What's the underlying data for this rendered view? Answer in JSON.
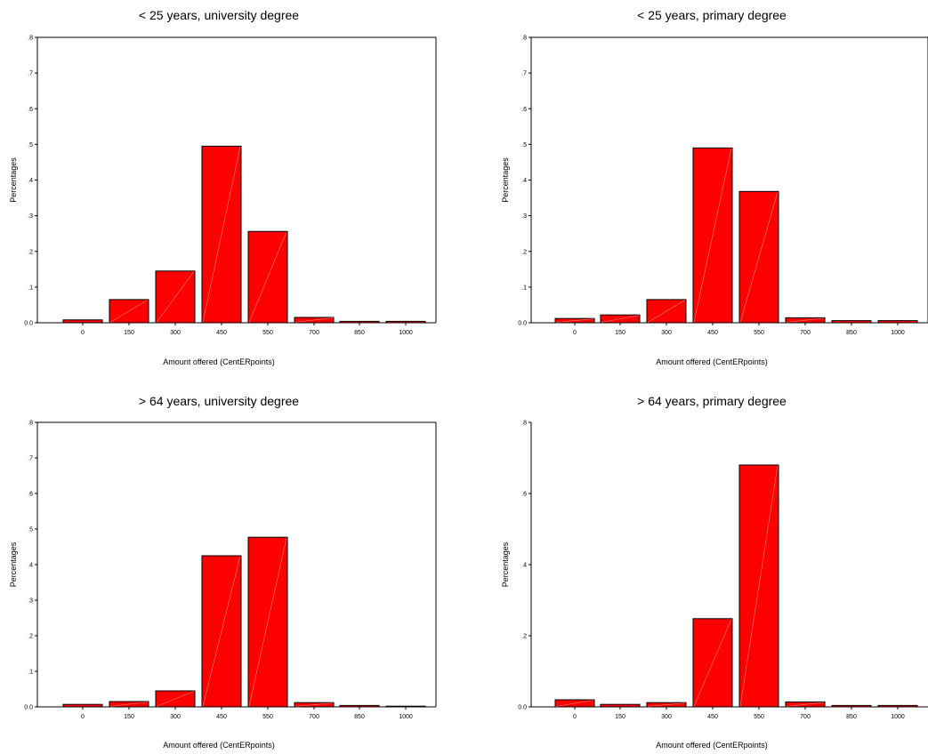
{
  "chart_data": [
    {
      "type": "bar",
      "title": "< 25 years, university degree",
      "xlabel": "Amount offered (CentERpoints)",
      "ylabel": "Percentages",
      "categories": [
        "0",
        "150",
        "300",
        "450",
        "550",
        "700",
        "850",
        "1000"
      ],
      "values": [
        0.008,
        0.065,
        0.145,
        0.495,
        0.256,
        0.015,
        0.004,
        0.004
      ],
      "ylim": [
        0,
        0.8
      ],
      "yticks": [
        0.0,
        0.1,
        0.2,
        0.3,
        0.4,
        0.5,
        0.6,
        0.7,
        0.8
      ],
      "ytick_labels": [
        "0.0",
        ".1",
        ".2",
        ".3",
        ".4",
        ".5",
        ".6",
        ".7",
        ".8"
      ],
      "grid": false,
      "bar_color": "#ff0000"
    },
    {
      "type": "bar",
      "title": "< 25 years, primary degree",
      "xlabel": "Amount offered (CentERpoints)",
      "ylabel": "Percentages",
      "categories": [
        "0",
        "150",
        "300",
        "450",
        "550",
        "700",
        "850",
        "1000"
      ],
      "values": [
        0.012,
        0.022,
        0.065,
        0.49,
        0.368,
        0.014,
        0.006,
        0.006
      ],
      "ylim": [
        0,
        0.8
      ],
      "yticks": [
        0.0,
        0.1,
        0.2,
        0.3,
        0.4,
        0.5,
        0.6,
        0.7,
        0.8
      ],
      "ytick_labels": [
        "0.0",
        ".1",
        ".2",
        ".3",
        ".4",
        ".5",
        ".6",
        ".7",
        ".8"
      ],
      "grid": false,
      "bar_color": "#ff0000"
    },
    {
      "type": "bar",
      "title": "> 64 years, university degree",
      "xlabel": "Amount offered (CentERpoints)",
      "ylabel": "Percentages",
      "categories": [
        "0",
        "150",
        "300",
        "450",
        "550",
        "700",
        "850",
        "1000"
      ],
      "values": [
        0.007,
        0.015,
        0.045,
        0.425,
        0.477,
        0.012,
        0.004,
        0.002
      ],
      "ylim": [
        0,
        0.8
      ],
      "yticks": [
        0.0,
        0.1,
        0.2,
        0.3,
        0.4,
        0.5,
        0.6,
        0.7,
        0.8
      ],
      "ytick_labels": [
        "0.0",
        ".1",
        ".2",
        ".3",
        ".4",
        ".5",
        ".6",
        ".7",
        ".8"
      ],
      "grid": false,
      "bar_color": "#ff0000"
    },
    {
      "type": "bar",
      "title": "> 64 years, primary degree",
      "xlabel": "Amount offered (CentERpoints)",
      "ylabel": "Percentages",
      "categories": [
        "0",
        "150",
        "300",
        "450",
        "550",
        "700",
        "850",
        "1000"
      ],
      "values": [
        0.02,
        0.007,
        0.012,
        0.248,
        0.68,
        0.014,
        0.004,
        0.004
      ],
      "ylim": [
        0,
        0.8
      ],
      "yticks": [
        0.0,
        0.2,
        0.4,
        0.6,
        0.8
      ],
      "ytick_labels": [
        "0.0",
        ".2",
        ".4",
        ".6",
        ".8"
      ],
      "grid": false,
      "bar_color": "#ff0000"
    }
  ]
}
